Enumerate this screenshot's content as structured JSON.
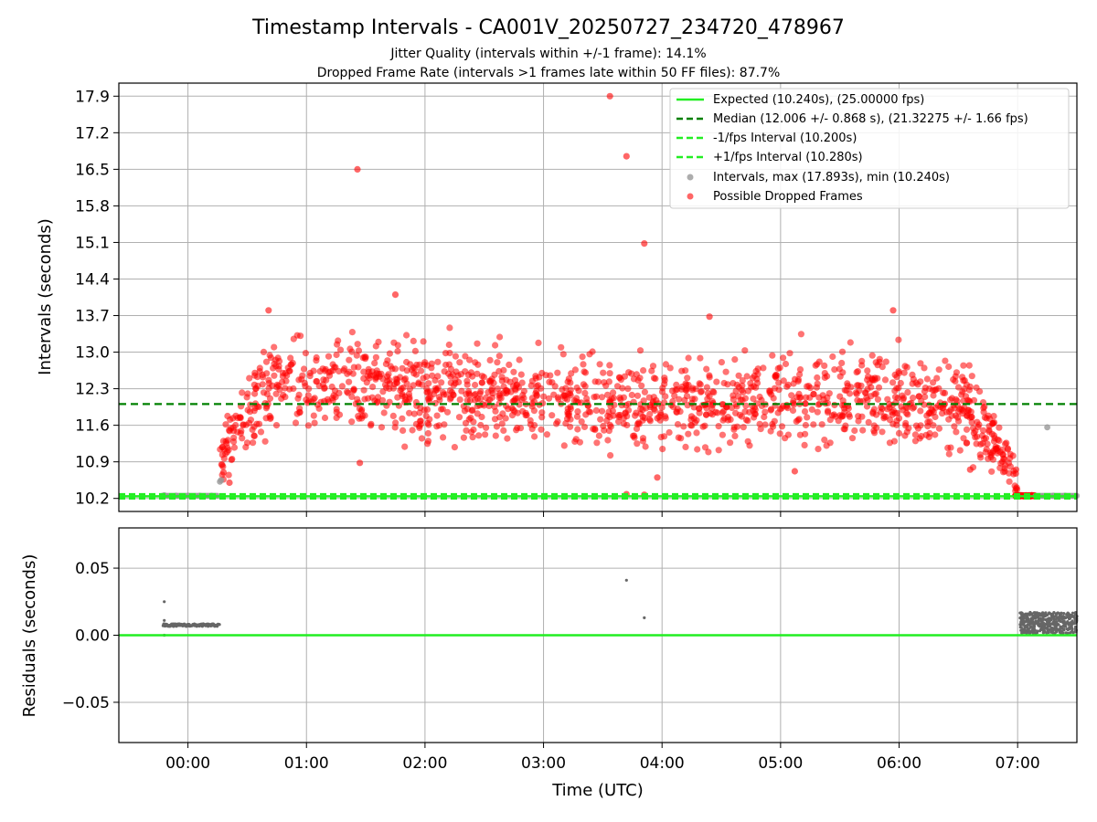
{
  "chart_data": [
    {
      "type": "scatter",
      "title": "Timestamp Intervals - CA001V_20250727_234720_478967",
      "subtitle_1": "Jitter Quality (intervals within +/-1 frame): 14.1%",
      "subtitle_2": "Dropped Frame Rate (intervals >1 frames late within 50 FF files): 87.7%",
      "xlabel": "",
      "ylabel": "Intervals (seconds)",
      "xlim_hours": [
        -0.583,
        7.5
      ],
      "ylim": [
        9.95,
        18.15
      ],
      "yticks": [
        "10.2",
        "10.9",
        "11.6",
        "12.3",
        "13.0",
        "13.7",
        "14.4",
        "15.1",
        "15.8",
        "16.5",
        "17.2",
        "17.9"
      ],
      "grid": true,
      "legend_position": "top-right",
      "legend": [
        "Expected (10.240s), (25.00000 fps)",
        "Median (12.006 +/- 0.868 s), (21.32275 +/- 1.66 fps)",
        "-1/fps Interval (10.200s)",
        "+1/fps Interval (10.280s)",
        "Intervals, max (17.893s), min (10.240s)",
        "Possible Dropped Frames"
      ],
      "reference_lines": {
        "expected": 10.24,
        "median": 12.006,
        "minus_1_fps": 10.2,
        "plus_1_fps": 10.28
      },
      "colors": {
        "expected": "#22ee22",
        "median": "#008000",
        "fps_bounds": "#22ee22",
        "intervals": "#999999",
        "dropped": "#ff0000"
      },
      "series": [
        {
          "name": "Intervals, max (17.893s), min (10.240s)",
          "points_hours_seconds": [
            [
              -0.2,
              10.26
            ],
            [
              -0.1,
              10.25
            ],
            [
              0.0,
              10.25
            ],
            [
              0.1,
              10.25
            ],
            [
              0.2,
              10.25
            ],
            [
              0.27,
              10.52
            ],
            [
              0.28,
              10.55
            ],
            [
              7.25,
              11.56
            ],
            [
              7.3,
              10.25
            ],
            [
              7.4,
              10.25
            ]
          ]
        },
        {
          "name": "Possible Dropped Frames",
          "outliers_hours_seconds": [
            [
              1.43,
              16.5
            ],
            [
              3.56,
              17.9
            ],
            [
              3.7,
              16.75
            ],
            [
              3.85,
              15.08
            ],
            [
              1.75,
              14.1
            ],
            [
              1.45,
              10.88
            ],
            [
              0.68,
              13.8
            ],
            [
              4.4,
              13.68
            ],
            [
              5.95,
              13.8
            ],
            [
              3.7,
              10.28
            ],
            [
              3.85,
              10.27
            ],
            [
              0.3,
              10.7
            ],
            [
              0.35,
              10.5
            ],
            [
              5.12,
              10.72
            ],
            [
              6.6,
              10.75
            ],
            [
              3.96,
              10.6
            ]
          ]
        }
      ]
    },
    {
      "type": "scatter",
      "xlabel": "Time (UTC)",
      "ylabel": "Residuals (seconds)",
      "xlim_hours": [
        -0.583,
        7.5
      ],
      "ylim": [
        -0.08,
        0.08
      ],
      "yticks": [
        "−0.05",
        "0.00",
        "0.05"
      ],
      "xticks": [
        "00:00",
        "01:00",
        "02:00",
        "03:00",
        "04:00",
        "05:00",
        "06:00",
        "07:00"
      ],
      "grid": true,
      "zero_line": 0.0,
      "series": [
        {
          "name": "",
          "points_hours_seconds": [
            [
              -0.2,
              0.025
            ],
            [
              -0.2,
              0.011
            ],
            [
              -0.2,
              0.0
            ],
            [
              3.7,
              0.041
            ],
            [
              3.85,
              0.013
            ]
          ]
        }
      ]
    }
  ]
}
